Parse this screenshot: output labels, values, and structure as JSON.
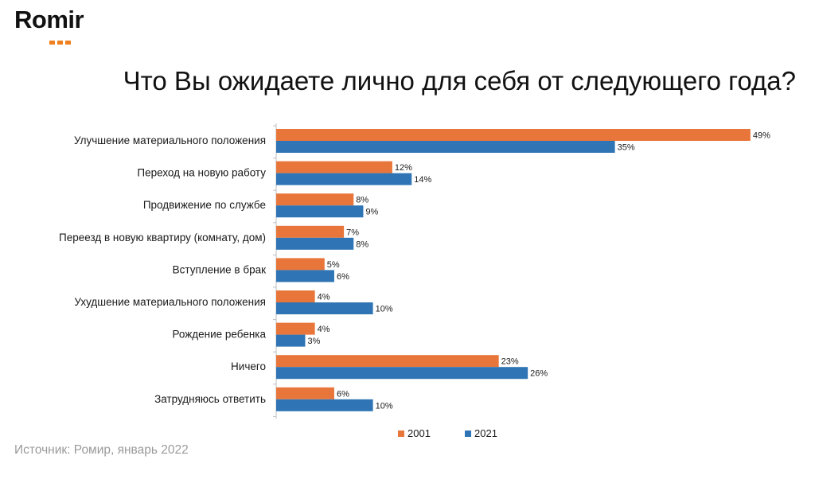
{
  "logo": {
    "text": "Romir",
    "dots_color": "#f07f1e"
  },
  "title": "Что Вы ожидаете лично для себя от следующего года?",
  "source": "Источник: Ромир, январь 2022",
  "colors": {
    "series_2001": "#e8763a",
    "series_2021": "#2f75b5",
    "axis": "#bfbfbf",
    "text": "#1a1a1a"
  },
  "chart_data": {
    "type": "bar",
    "orientation": "horizontal",
    "categories": [
      "Улучшение материального положения",
      "Переход на новую работу",
      "Продвижение по службе",
      "Переезд в новую квартиру (комнату, дом)",
      "Вступление в брак",
      "Ухудшение материального положения",
      "Рождение ребенка",
      "Ничего",
      "Затрудняюсь ответить"
    ],
    "series": [
      {
        "name": "2001",
        "values": [
          49,
          12,
          8,
          7,
          5,
          4,
          4,
          23,
          6
        ]
      },
      {
        "name": "2021",
        "values": [
          35,
          14,
          9,
          8,
          6,
          10,
          3,
          26,
          10
        ]
      }
    ],
    "value_suffix": "%",
    "xlim": [
      0,
      49
    ],
    "grid": false,
    "legend_position": "bottom-center",
    "title": "Что Вы ожидаете лично для себя от следующего года?"
  }
}
